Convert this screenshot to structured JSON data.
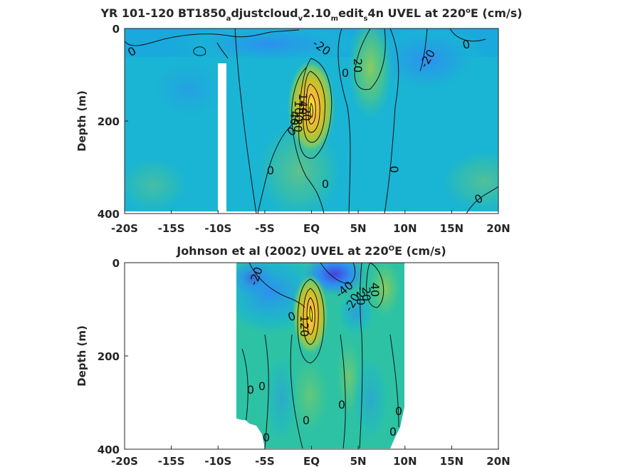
{
  "figure": {
    "colors": {
      "background": "#ffffff",
      "axis": "#262626",
      "contour": "#111111",
      "colormap": [
        "#3e26a8",
        "#4743e0",
        "#2d8ff0",
        "#1ab4d4",
        "#2dc2a4",
        "#76ca69",
        "#c8c12a",
        "#fdba3b",
        "#fee02c",
        "#f9fb14"
      ]
    },
    "panels": [
      {
        "id": "model",
        "title_parts": [
          {
            "text": "YR 101-120 BT1850",
            "shift": "none"
          },
          {
            "text": "a",
            "shift": "sub"
          },
          {
            "text": "djustcloud",
            "shift": "none"
          },
          {
            "text": "v",
            "shift": "sub"
          },
          {
            "text": "2.10",
            "shift": "none"
          },
          {
            "text": "m",
            "shift": "sub"
          },
          {
            "text": "edit",
            "shift": "none"
          },
          {
            "text": "s",
            "shift": "sub"
          },
          {
            "text": "4n UVEL at 220",
            "shift": "none"
          },
          {
            "text": "o",
            "shift": "super"
          },
          {
            "text": "E (cm/s)",
            "shift": "none"
          }
        ],
        "ylabel": "Depth (m)",
        "yticks": [
          "0",
          "200",
          "400"
        ],
        "xticks": [
          "-20S",
          "-15S",
          "-10S",
          "-5S",
          "EQ",
          "5N",
          "10N",
          "15N",
          "20N"
        ],
        "contour_labels": [
          "0",
          "-20",
          "-20",
          "0",
          "20",
          "20",
          "0",
          "-20",
          "140",
          "100",
          "40",
          "0",
          "0",
          "0",
          "0",
          "0"
        ]
      },
      {
        "id": "observed",
        "title_parts": [
          {
            "text": "Johnson et al (2002) UVEL at 220",
            "shift": "none"
          },
          {
            "text": "O",
            "shift": "super"
          },
          {
            "text": "E (cm/s)",
            "shift": "none"
          }
        ],
        "ylabel": "Depth (m)",
        "yticks": [
          "0",
          "200",
          "400"
        ],
        "xticks": [
          "-20S",
          "-15S",
          "-10S",
          "-5S",
          "EQ",
          "5N",
          "10N",
          "15N",
          "20N"
        ],
        "contour_labels": [
          "-20",
          "-40",
          "-20",
          "-20",
          "40",
          "20",
          "0",
          "120",
          "0",
          "0",
          "0",
          "0",
          "0",
          "0",
          "0"
        ]
      }
    ]
  },
  "chart_data": [
    {
      "type": "heatmap",
      "title": "YR 101-120 BT1850adjustcloudv2.10meditS4n UVEL at 220°E (cm/s)",
      "xlabel": "",
      "ylabel": "Depth (m)",
      "xlim": [
        -20,
        20
      ],
      "ylim": [
        400,
        0
      ],
      "x_units": "degrees latitude",
      "y_reversed": true,
      "contour_interval": 20,
      "data_gap": {
        "lat_range": [
          -10,
          -9.2
        ],
        "depth_range": [
          75,
          400
        ]
      },
      "features": [
        {
          "name": "equatorial undercurrent core",
          "lat": 0,
          "depth": 140,
          "value": 140
        },
        {
          "name": "surface westward flow",
          "lat": 0,
          "depth": 40,
          "value": -20
        },
        {
          "name": "eastward countercurrent",
          "lat": 6,
          "depth": 70,
          "value": 20
        },
        {
          "name": "westward flow",
          "lat": 12,
          "depth": 100,
          "value": -20
        }
      ]
    },
    {
      "type": "heatmap",
      "title": "Johnson et al (2002) UVEL at 220°E (cm/s)",
      "xlabel": "",
      "ylabel": "Depth (m)",
      "xlim": [
        -20,
        20
      ],
      "ylim": [
        400,
        0
      ],
      "x_units": "degrees latitude",
      "y_reversed": true,
      "contour_interval": 20,
      "data_extent": {
        "lat_range": [
          -8,
          10
        ],
        "depth_range": [
          0,
          400
        ]
      },
      "features": [
        {
          "name": "equatorial undercurrent core",
          "lat": 0,
          "depth": 110,
          "value": 120
        },
        {
          "name": "south equatorial current",
          "lat": -5,
          "depth": 30,
          "value": -20
        },
        {
          "name": "south equatorial current north",
          "lat": 3,
          "depth": 20,
          "value": -40
        },
        {
          "name": "north equatorial countercurrent",
          "lat": 7.5,
          "depth": 50,
          "value": 40
        }
      ]
    }
  ]
}
